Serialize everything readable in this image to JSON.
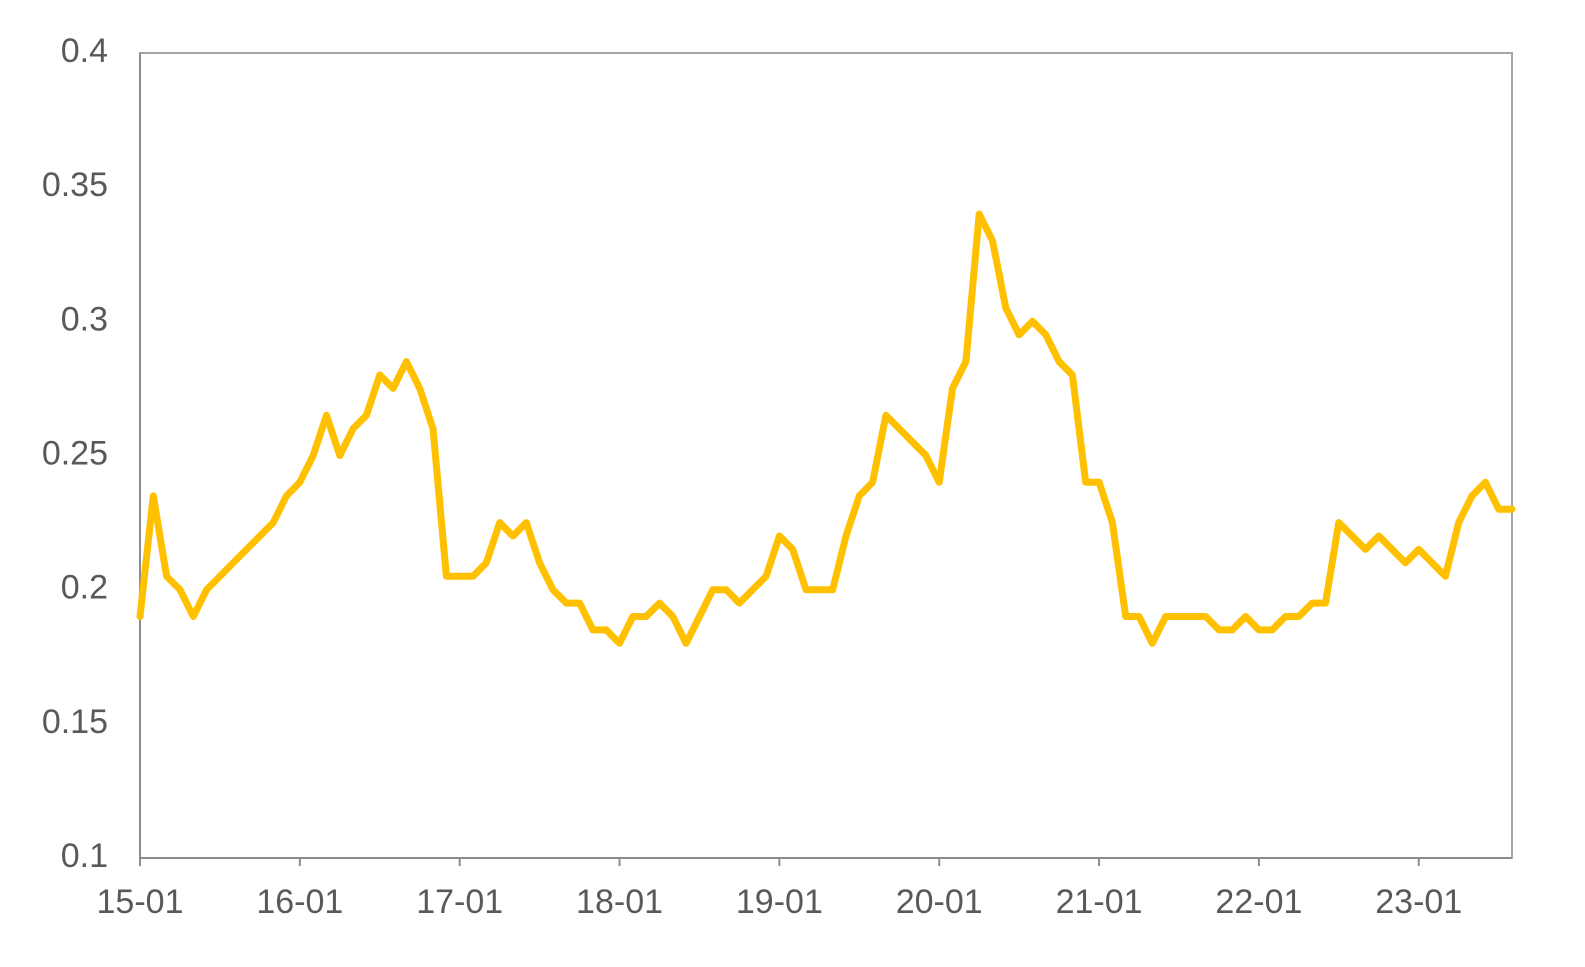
{
  "chart_data": {
    "type": "line",
    "categories": [
      "15-01",
      null,
      null,
      null,
      null,
      null,
      null,
      null,
      null,
      null,
      null,
      null,
      "16-01",
      null,
      null,
      null,
      null,
      null,
      null,
      null,
      null,
      null,
      null,
      null,
      "17-01",
      null,
      null,
      null,
      null,
      null,
      null,
      null,
      null,
      null,
      null,
      null,
      "18-01",
      null,
      null,
      null,
      null,
      null,
      null,
      null,
      null,
      null,
      null,
      null,
      "19-01",
      null,
      null,
      null,
      null,
      null,
      null,
      null,
      null,
      null,
      null,
      null,
      "20-01",
      null,
      null,
      null,
      null,
      null,
      null,
      null,
      null,
      null,
      null,
      null,
      "21-01",
      null,
      null,
      null,
      null,
      null,
      null,
      null,
      null,
      null,
      null,
      null,
      "22-01",
      null,
      null,
      null,
      null,
      null,
      null,
      null,
      null,
      null,
      null,
      null,
      "23-01",
      null,
      null,
      null,
      null,
      null,
      null,
      null
    ],
    "values": [
      0.19,
      0.235,
      0.205,
      0.2,
      0.19,
      0.2,
      0.205,
      0.21,
      0.215,
      0.22,
      0.225,
      0.235,
      0.24,
      0.25,
      0.265,
      0.25,
      0.26,
      0.265,
      0.28,
      0.275,
      0.285,
      0.275,
      0.26,
      0.205,
      0.205,
      0.205,
      0.21,
      0.225,
      0.22,
      0.225,
      0.21,
      0.2,
      0.195,
      0.195,
      0.185,
      0.185,
      0.18,
      0.19,
      0.19,
      0.195,
      0.19,
      0.18,
      0.19,
      0.2,
      0.2,
      0.195,
      0.2,
      0.205,
      0.22,
      0.215,
      0.2,
      0.2,
      0.2,
      0.22,
      0.235,
      0.24,
      0.265,
      0.26,
      0.255,
      0.25,
      0.24,
      0.275,
      0.285,
      0.34,
      0.33,
      0.305,
      0.295,
      0.3,
      0.295,
      0.285,
      0.28,
      0.24,
      0.24,
      0.225,
      0.19,
      0.19,
      0.18,
      0.19,
      0.19,
      0.19,
      0.19,
      0.185,
      0.185,
      0.19,
      0.185,
      0.185,
      0.19,
      0.19,
      0.195,
      0.195,
      0.225,
      0.22,
      0.215,
      0.22,
      0.215,
      0.21,
      0.215,
      0.21,
      0.205,
      0.225,
      0.235,
      0.24,
      0.23,
      0.23
    ],
    "color": "#FFC000",
    "ylim": [
      0.1,
      0.4
    ],
    "yticks": [
      0.1,
      0.15,
      0.2,
      0.25,
      0.3,
      0.35,
      0.4
    ],
    "grid": false
  }
}
